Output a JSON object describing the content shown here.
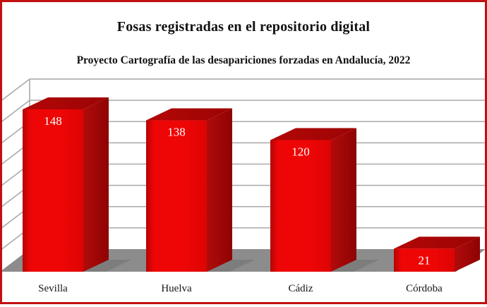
{
  "header": {
    "title": "Fosas registradas en el repositorio digital",
    "subtitle": "Proyecto Cartografía de las desapariciones forzadas en Andalucía, 2022"
  },
  "chart_data": {
    "type": "bar",
    "projection": "3d",
    "title": "Fosas registradas en el repositorio digital",
    "subtitle": "Proyecto Cartografía de las desapariciones forzadas en Andalucía, 2022",
    "categories": [
      "Sevilla",
      "Huelva",
      "Cádiz",
      "Córdoba"
    ],
    "values": [
      148,
      138,
      120,
      21
    ],
    "xlabel": "",
    "ylabel": "",
    "ylim": [
      0,
      160
    ],
    "gridline_step": 20,
    "grid": true,
    "legend": false,
    "value_labels_shown": true,
    "colors": {
      "frame_border": "#c21010",
      "bar_front": "#ee0606",
      "bar_front_edge": "#b50404",
      "bar_top": "#b40707",
      "bar_top_dark": "#9c0404",
      "bar_side": "#b00b0b",
      "bar_side_dark": "#8f0303",
      "floor": "#8c8c8c",
      "bar_shadow": "#7d7d7d",
      "gridline": "#a9a9a9",
      "wall_edge": "#b3b3b3",
      "value_label": "#ffffff",
      "category_label": "#161616",
      "title_color": "#111111"
    }
  }
}
